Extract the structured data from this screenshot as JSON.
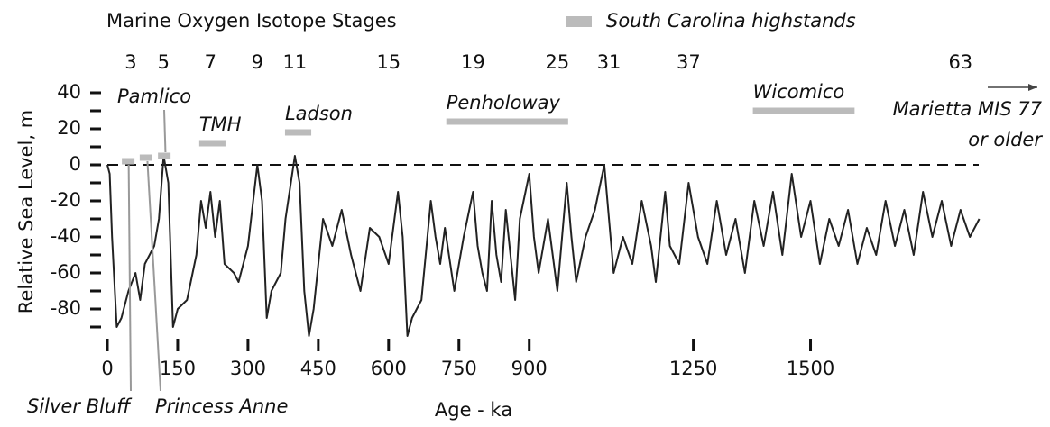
{
  "chart_data": {
    "type": "line",
    "title": "Marine Oxygen Isotope Stages",
    "legend_label": "South Carolina highstands",
    "x_label": "Age - ka",
    "y_label": "Relative Sea Level, m",
    "color": "#222222",
    "highstand_color": "#bbbbbb",
    "xlim": [
      0,
      1880
    ],
    "ylim": [
      -95,
      45
    ],
    "xticks": [
      0,
      150,
      300,
      450,
      600,
      750,
      900,
      1250,
      1500
    ],
    "yticks": [
      40,
      20,
      0,
      -20,
      -40,
      -60,
      -80
    ],
    "yminor_ticks": [
      30,
      10,
      -10,
      -30,
      -50,
      -70,
      -90
    ],
    "reference_line": 0,
    "mis_stages": [
      {
        "label": "3",
        "age": 50
      },
      {
        "label": "5",
        "age": 120
      },
      {
        "label": "7",
        "age": 220
      },
      {
        "label": "9",
        "age": 320
      },
      {
        "label": "11",
        "age": 400
      },
      {
        "label": "15",
        "age": 600
      },
      {
        "label": "19",
        "age": 780
      },
      {
        "label": "25",
        "age": 960
      },
      {
        "label": "31",
        "age": 1070
      },
      {
        "label": "37",
        "age": 1240
      },
      {
        "label": "63",
        "age": 1820
      }
    ],
    "highstands": [
      {
        "name": "Silver Bluff",
        "start": 31,
        "end": 60,
        "level": 2
      },
      {
        "name": "Princess Anne",
        "start": 69,
        "end": 102,
        "level": 4
      },
      {
        "name": "Pamlico",
        "start": 108,
        "end": 140,
        "level": 5
      },
      {
        "name": "TMH",
        "start": 196,
        "end": 252,
        "level": 12
      },
      {
        "name": "Ladson",
        "start": 379,
        "end": 435,
        "level": 18
      },
      {
        "name": "Penholoway",
        "start": 723,
        "end": 983,
        "level": 24
      },
      {
        "name": "Wicomico",
        "start": 1377,
        "end": 1594,
        "level": 30
      }
    ],
    "older_note": [
      "Marietta MIS 77",
      "or older"
    ],
    "x": [
      0,
      5,
      10,
      20,
      30,
      45,
      60,
      70,
      80,
      100,
      110,
      120,
      130,
      140,
      150,
      170,
      190,
      200,
      210,
      220,
      230,
      240,
      250,
      270,
      280,
      300,
      320,
      330,
      340,
      350,
      370,
      380,
      400,
      410,
      420,
      430,
      440,
      460,
      480,
      500,
      520,
      540,
      560,
      580,
      600,
      620,
      630,
      640,
      650,
      670,
      690,
      700,
      710,
      720,
      740,
      760,
      780,
      790,
      800,
      810,
      820,
      830,
      840,
      850,
      870,
      880,
      900,
      910,
      920,
      940,
      960,
      980,
      990,
      1000,
      1020,
      1040,
      1060,
      1070,
      1080,
      1100,
      1120,
      1140,
      1160,
      1170,
      1190,
      1200,
      1220,
      1240,
      1260,
      1280,
      1300,
      1320,
      1340,
      1360,
      1380,
      1400,
      1420,
      1440,
      1460,
      1480,
      1500,
      1520,
      1540,
      1560,
      1580,
      1600,
      1620,
      1640,
      1660,
      1680,
      1700,
      1720,
      1740,
      1760,
      1780,
      1800,
      1820,
      1840,
      1860
    ],
    "values": [
      0,
      -5,
      -40,
      -90,
      -85,
      -70,
      -60,
      -75,
      -55,
      -45,
      -30,
      5,
      -10,
      -90,
      -80,
      -75,
      -50,
      -20,
      -35,
      -15,
      -40,
      -20,
      -55,
      -60,
      -65,
      -45,
      0,
      -20,
      -85,
      -70,
      -60,
      -30,
      5,
      -10,
      -70,
      -95,
      -80,
      -30,
      -45,
      -25,
      -50,
      -70,
      -35,
      -40,
      -55,
      -15,
      -40,
      -95,
      -85,
      -75,
      -20,
      -40,
      -55,
      -35,
      -70,
      -40,
      -15,
      -45,
      -60,
      -70,
      -20,
      -50,
      -65,
      -25,
      -75,
      -30,
      -5,
      -40,
      -60,
      -30,
      -70,
      -10,
      -40,
      -65,
      -40,
      -25,
      0,
      -30,
      -60,
      -40,
      -55,
      -20,
      -45,
      -65,
      -15,
      -45,
      -55,
      -10,
      -40,
      -55,
      -20,
      -50,
      -30,
      -60,
      -20,
      -45,
      -15,
      -50,
      -5,
      -40,
      -20,
      -55,
      -30,
      -45,
      -25,
      -55,
      -35,
      -50,
      -20,
      -45,
      -25,
      -50,
      -15,
      -40,
      -20,
      -45,
      -25,
      -40,
      -30
    ]
  }
}
